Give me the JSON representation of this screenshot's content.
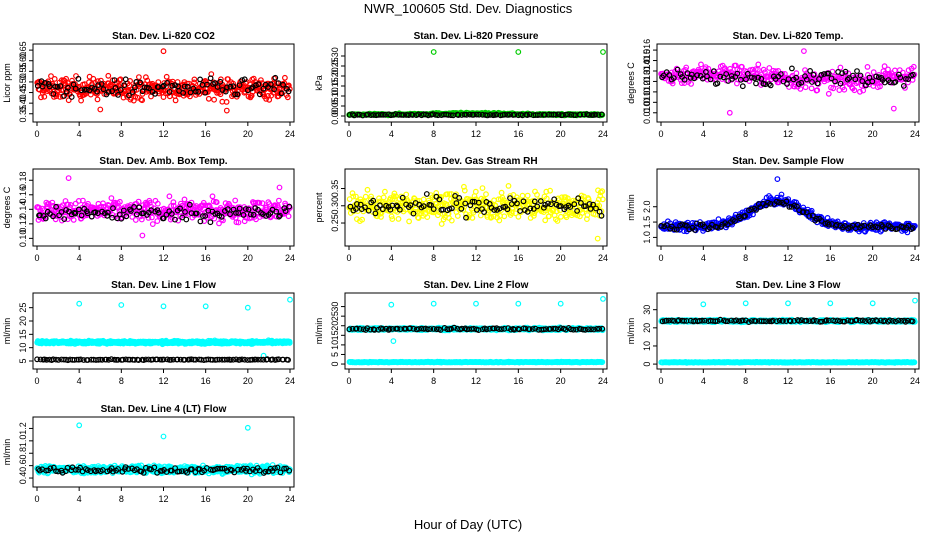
{
  "page": {
    "title": "NWR_100605  Std. Dev. Diagnostics",
    "xlabel": "Hour of Day (UTC)"
  },
  "chart_data": [
    {
      "type": "scatter",
      "title": "Stan. Dev. Li-820 CO2",
      "ylabel": "Licor ppm",
      "xlim": [
        0,
        24
      ],
      "ylim": [
        0.33,
        0.66
      ],
      "xticks": [
        "0",
        "4",
        "8",
        "12",
        "16",
        "20",
        "24"
      ],
      "yticks": [
        "0.35",
        "0.40",
        "0.45",
        "0.50",
        "0.55",
        "0.60",
        "0.65"
      ],
      "grid": false,
      "series": [
        {
          "color": "#ff0000",
          "gen": {
            "n": 420,
            "base": 0.47,
            "spread": 0.05,
            "outliers": [
              [
                12,
                0.645
              ],
              [
                6,
                0.37
              ],
              [
                18,
                0.365
              ]
            ]
          }
        },
        {
          "color": "#000000",
          "gen": {
            "n": 100,
            "base": 0.47,
            "spread": 0.04
          }
        }
      ]
    },
    {
      "type": "scatter",
      "title": "Stan. Dev. Li-820 Pressure",
      "ylabel": "kPa",
      "xlim": [
        0,
        24
      ],
      "ylim": [
        -0.01,
        0.34
      ],
      "xticks": [
        "0",
        "4",
        "8",
        "12",
        "16",
        "20",
        "24"
      ],
      "yticks": [
        "0.00",
        "0.05",
        "0.10",
        "0.15",
        "0.20",
        "0.25",
        "0.30"
      ],
      "grid": false,
      "series": [
        {
          "color": "#00cc00",
          "gen": {
            "n": 300,
            "base": 0.007,
            "spread": 0.004,
            "bump": 0.006,
            "outliers": [
              [
                8,
                0.32
              ],
              [
                16,
                0.32
              ],
              [
                24,
                0.32
              ]
            ]
          }
        },
        {
          "color": "#000000",
          "gen": {
            "n": 100,
            "base": 0.006,
            "spread": 0.003
          }
        }
      ]
    },
    {
      "type": "scatter",
      "title": "Stan. Dev. Li-820 Temp.",
      "ylabel": "degrees C",
      "xlim": [
        0,
        24
      ],
      "ylim": [
        0.0095,
        0.0162
      ],
      "xticks": [
        "0",
        "4",
        "8",
        "12",
        "16",
        "20",
        "24"
      ],
      "yticks": [
        "0.010",
        "0.011",
        "0.012",
        "0.013",
        "0.014",
        "0.015",
        "0.016"
      ],
      "grid": false,
      "series": [
        {
          "color": "#ff00ff",
          "gen": {
            "n": 350,
            "base": 0.0134,
            "spread": 0.0009,
            "wave": 0.0004,
            "outliers": [
              [
                13.5,
                0.0159
              ],
              [
                6.5,
                0.01
              ],
              [
                22,
                0.0104
              ]
            ]
          }
        },
        {
          "color": "#000000",
          "gen": {
            "n": 100,
            "base": 0.0134,
            "spread": 0.0007
          }
        }
      ]
    },
    {
      "type": "scatter",
      "title": "Stan. Dev. Amb. Box Temp.",
      "ylabel": "degrees C",
      "xlim": [
        0,
        24
      ],
      "ylim": [
        0.095,
        0.19
      ],
      "xticks": [
        "0",
        "4",
        "8",
        "12",
        "16",
        "20",
        "24"
      ],
      "yticks": [
        "0.10",
        "0.12",
        "0.14",
        "0.16",
        "0.18"
      ],
      "grid": false,
      "series": [
        {
          "color": "#ff00ff",
          "gen": {
            "n": 400,
            "base": 0.138,
            "spread": 0.014,
            "outliers": [
              [
                3,
                0.183
              ],
              [
                10,
                0.104
              ],
              [
                23,
                0.17
              ]
            ]
          }
        },
        {
          "color": "#000000",
          "gen": {
            "n": 100,
            "base": 0.135,
            "spread": 0.01
          }
        }
      ]
    },
    {
      "type": "scatter",
      "title": "Stan. Dev. Gas Stream RH",
      "ylabel": "percent",
      "xlim": [
        0,
        24
      ],
      "ylim": [
        0.195,
        0.395
      ],
      "xticks": [
        "0",
        "4",
        "8",
        "12",
        "16",
        "20",
        "24"
      ],
      "yticks": [
        "0.25",
        "0.30",
        "0.35"
      ],
      "grid": false,
      "series": [
        {
          "color": "#ffff00",
          "gen": {
            "n": 450,
            "base": 0.3,
            "spread": 0.04,
            "outliers": [
              [
                23.5,
                0.205
              ]
            ]
          }
        },
        {
          "color": "#000000",
          "gen": {
            "n": 100,
            "base": 0.3,
            "spread": 0.03
          }
        }
      ]
    },
    {
      "type": "scatter",
      "title": "Stan. Dev. Sample Flow",
      "ylabel": "ml/min",
      "xlim": [
        0,
        24
      ],
      "ylim": [
        0.85,
        3.1
      ],
      "xticks": [
        "0",
        "4",
        "8",
        "12",
        "16",
        "20",
        "24"
      ],
      "yticks": [
        "1.0",
        "1.5",
        "2.0"
      ],
      "grid": false,
      "series": [
        {
          "color": "#0000ff",
          "gen": {
            "n": 420,
            "base": 1.35,
            "spread": 0.14,
            "hump": [
              11,
              0.85,
              3.5
            ],
            "outliers": [
              [
                11,
                2.9
              ]
            ]
          }
        },
        {
          "color": "#000000",
          "gen": {
            "n": 100,
            "base": 1.35,
            "spread": 0.1,
            "hump": [
              11,
              0.8,
              3.5
            ]
          }
        }
      ]
    },
    {
      "type": "scatter",
      "title": "Stan. Dev. Line 1 Flow",
      "ylabel": "ml/min",
      "xlim": [
        0,
        24
      ],
      "ylim": [
        3.5,
        29
      ],
      "xticks": [
        "0",
        "4",
        "8",
        "12",
        "16",
        "20",
        "24"
      ],
      "yticks": [
        "5",
        "10",
        "15",
        "20",
        "25"
      ],
      "grid": false,
      "series": [
        {
          "color": "#00ffff",
          "gen": {
            "n": 700,
            "base": 12,
            "spread": 0.5,
            "outliers": [
              [
                4,
                26.5
              ],
              [
                8,
                26
              ],
              [
                12,
                25.5
              ],
              [
                16,
                25.5
              ],
              [
                20,
                25
              ],
              [
                24,
                28
              ],
              [
                21.5,
                7
              ]
            ]
          }
        },
        {
          "color": "#000000",
          "gen": {
            "n": 110,
            "base": 5.5,
            "spread": 0.15
          }
        }
      ]
    },
    {
      "type": "scatter",
      "title": "Stan. Dev. Line 2 Flow",
      "ylabel": "ml/min",
      "xlim": [
        0,
        24
      ],
      "ylim": [
        -0.5,
        35
      ],
      "xticks": [
        "0",
        "4",
        "8",
        "12",
        "16",
        "20",
        "24"
      ],
      "yticks": [
        "0",
        "5",
        "10",
        "15",
        "20",
        "25",
        "30"
      ],
      "grid": false,
      "series": [
        {
          "color": "#00ffff",
          "gen": {
            "n": 600,
            "base": 18.3,
            "spread": 0.6,
            "outliers": [
              [
                4,
                31
              ],
              [
                8,
                31.5
              ],
              [
                12,
                31.5
              ],
              [
                16,
                31.5
              ],
              [
                20,
                31.5
              ],
              [
                24,
                34
              ],
              [
                4.2,
                12
              ]
            ]
          }
        },
        {
          "color": "#00ffff",
          "gen": {
            "n": 300,
            "base": 1,
            "spread": 0.2
          }
        },
        {
          "color": "#000000",
          "gen": {
            "n": 100,
            "base": 18.3,
            "spread": 0.5
          }
        }
      ]
    },
    {
      "type": "scatter",
      "title": "Stan. Dev. Line 3 Flow",
      "ylabel": "ml/min",
      "xlim": [
        0,
        24
      ],
      "ylim": [
        -0.5,
        37
      ],
      "xticks": [
        "0",
        "4",
        "8",
        "12",
        "16",
        "20",
        "24"
      ],
      "yticks": [
        "0",
        "10",
        "20",
        "30"
      ],
      "grid": false,
      "series": [
        {
          "color": "#00ffff",
          "gen": {
            "n": 600,
            "base": 23.8,
            "spread": 0.6,
            "outliers": [
              [
                4,
                33
              ],
              [
                8,
                33.5
              ],
              [
                12,
                33.5
              ],
              [
                16,
                33.5
              ],
              [
                20,
                33.5
              ],
              [
                24,
                35
              ]
            ]
          }
        },
        {
          "color": "#00ffff",
          "gen": {
            "n": 300,
            "base": 1,
            "spread": 0.2
          }
        },
        {
          "color": "#000000",
          "gen": {
            "n": 100,
            "base": 23.8,
            "spread": 0.5
          }
        }
      ]
    },
    {
      "type": "scatter",
      "title": "Stan. Dev. Line 4 (LT) Flow",
      "ylabel": "ml/min",
      "xlim": [
        0,
        24
      ],
      "ylim": [
        0.32,
        1.32
      ],
      "xticks": [
        "0",
        "4",
        "8",
        "12",
        "16",
        "20",
        "24"
      ],
      "yticks": [
        "0.4",
        "0.6",
        "0.8",
        "1.0",
        "1.2"
      ],
      "grid": false,
      "series": [
        {
          "color": "#00ffff",
          "gen": {
            "n": 650,
            "base": 0.54,
            "spread": 0.06,
            "outliers": [
              [
                4,
                1.25
              ],
              [
                12,
                1.07
              ],
              [
                20,
                1.21
              ]
            ]
          }
        },
        {
          "color": "#000000",
          "gen": {
            "n": 100,
            "base": 0.53,
            "spread": 0.05
          }
        }
      ]
    }
  ]
}
